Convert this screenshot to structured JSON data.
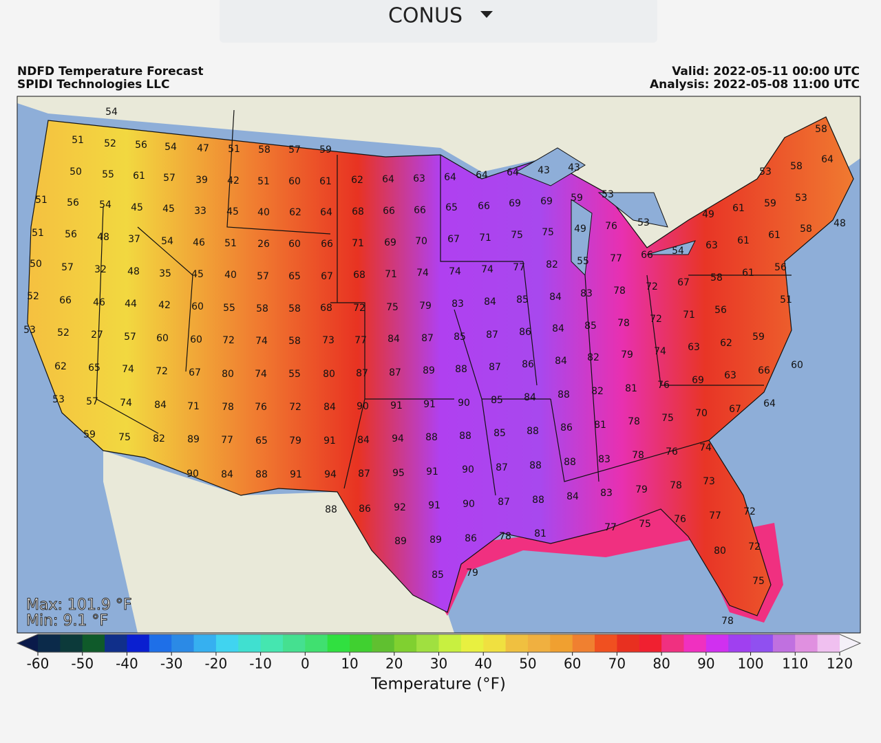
{
  "region_selector": {
    "label": "CONUS"
  },
  "header": {
    "title": "NDFD Temperature Forecast",
    "credit": "SPIDI Technologies LLC",
    "valid": "Valid: 2022-05-11 00:00 UTC",
    "analysis": "Analysis: 2022-05-08 11:00 UTC"
  },
  "stats": {
    "max": "Max: 101.9 °F",
    "min": "Min: 9.1 °F"
  },
  "map": {
    "labels": [
      54,
      51,
      52,
      56,
      54,
      47,
      51,
      58,
      57,
      59,
      50,
      55,
      61,
      57,
      39,
      42,
      51,
      60,
      61,
      62,
      64,
      63,
      64,
      64,
      64,
      43,
      43,
      58,
      53,
      58,
      64,
      51,
      56,
      54,
      45,
      45,
      33,
      45,
      40,
      62,
      64,
      68,
      66,
      66,
      65,
      66,
      69,
      69,
      59,
      53,
      49,
      61,
      59,
      53,
      48,
      51,
      56,
      48,
      37,
      54,
      46,
      51,
      26,
      60,
      66,
      71,
      69,
      70,
      67,
      71,
      75,
      75,
      49,
      76,
      53,
      63,
      61,
      61,
      58,
      50,
      57,
      32,
      48,
      35,
      45,
      40,
      57,
      65,
      67,
      68,
      71,
      74,
      74,
      74,
      77,
      82,
      55,
      77,
      66,
      54,
      67,
      58,
      61,
      56,
      52,
      66,
      46,
      44,
      42,
      60,
      55,
      58,
      58,
      68,
      72,
      75,
      79,
      83,
      84,
      85,
      84,
      83,
      78,
      72,
      51,
      53,
      52,
      27,
      57,
      60,
      60,
      72,
      74,
      58,
      73,
      77,
      84,
      87,
      85,
      87,
      86,
      84,
      85,
      78,
      72,
      71,
      56,
      59,
      62,
      63,
      62,
      65,
      74,
      72,
      67,
      80,
      74,
      55,
      80,
      87,
      87,
      89,
      88,
      87,
      86,
      84,
      82,
      79,
      74,
      60,
      66,
      63,
      69,
      76,
      53,
      57,
      74,
      84,
      71,
      78,
      76,
      72,
      84,
      90,
      91,
      91,
      90,
      85,
      84,
      88,
      82,
      81,
      64,
      67,
      70,
      59,
      75,
      82,
      89,
      77,
      65,
      79,
      91,
      84,
      94,
      88,
      88,
      85,
      88,
      86,
      81,
      78,
      75,
      76,
      74,
      90,
      84,
      88,
      91,
      94,
      87,
      95,
      91,
      90,
      87,
      88,
      88,
      83,
      78,
      73,
      78,
      88,
      86,
      92,
      91,
      90,
      87,
      88,
      84,
      83,
      79,
      72,
      77,
      76,
      75,
      77,
      89,
      89,
      86,
      78,
      81,
      80,
      72,
      85,
      79,
      75,
      78
    ]
  },
  "colorbar": {
    "label": "Temperature (°F)",
    "lim": [
      -60,
      120
    ],
    "step": 5,
    "ticks": [
      -60,
      -50,
      -40,
      -30,
      -20,
      -10,
      0,
      10,
      20,
      30,
      40,
      50,
      60,
      70,
      80,
      90,
      100,
      110,
      120
    ],
    "under_color": "#0a1a4a",
    "over_color": "#f4f0f8",
    "colors": [
      "#0b2a4a",
      "#0c3a3a",
      "#0f5a2a",
      "#102f8a",
      "#0a1fd0",
      "#1e6fe8",
      "#2b8ae6",
      "#36b0f0",
      "#40d4f0",
      "#40e0d0",
      "#45e6b0",
      "#45e090",
      "#40e070",
      "#30e040",
      "#40d030",
      "#60c030",
      "#80d030",
      "#a0e040",
      "#c8f040",
      "#e8f040",
      "#f0e040",
      "#f0c040",
      "#f0b040",
      "#f0a030",
      "#f08030",
      "#f05020",
      "#e83020",
      "#f02030",
      "#f03080",
      "#f030c0",
      "#d030f0",
      "#a040f0",
      "#9050f0",
      "#c070e0",
      "#e090e0",
      "#f0c0f0"
    ]
  }
}
